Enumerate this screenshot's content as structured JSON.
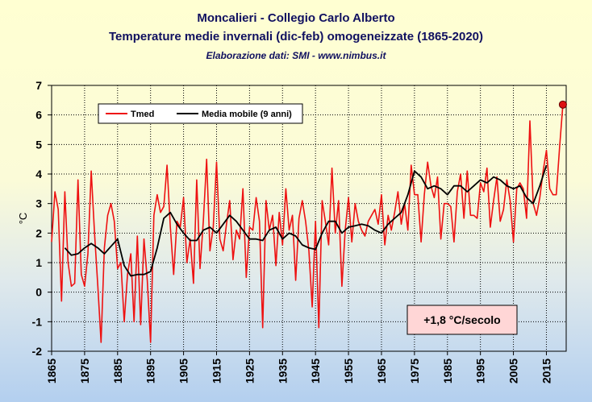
{
  "chart_data": {
    "type": "line",
    "title": "Moncalieri - Collegio Carlo Alberto",
    "subtitle": "Temperature medie invernali (dic-feb) omogeneizzate (1865-2020)",
    "source_note": "Elaborazione dati: SMI - www.nimbus.it",
    "xlabel": "",
    "ylabel": "°C",
    "ylim": [
      -2,
      7
    ],
    "xlim": [
      1865,
      2021
    ],
    "x_ticks": [
      "1865",
      "1875",
      "1885",
      "1895",
      "1905",
      "1915",
      "1925",
      "1935",
      "1945",
      "1955",
      "1965",
      "1975",
      "1985",
      "1995",
      "2005",
      "2015"
    ],
    "y_ticks": [
      "-2",
      "-1",
      "0",
      "1",
      "2",
      "3",
      "4",
      "5",
      "6",
      "7"
    ],
    "grid": true,
    "legend_placement": "top-left",
    "trend_label": "+1,8 °C/secolo",
    "highlight_last": {
      "x": 2020,
      "y": 6.35
    },
    "series": [
      {
        "name": "Tmed",
        "color": "#ee1111",
        "x": [
          1865,
          1866,
          1867,
          1868,
          1869,
          1870,
          1871,
          1872,
          1873,
          1874,
          1875,
          1876,
          1877,
          1878,
          1879,
          1880,
          1881,
          1882,
          1883,
          1884,
          1885,
          1886,
          1887,
          1888,
          1889,
          1890,
          1891,
          1892,
          1893,
          1894,
          1895,
          1896,
          1897,
          1898,
          1899,
          1900,
          1901,
          1902,
          1903,
          1904,
          1905,
          1906,
          1907,
          1908,
          1909,
          1910,
          1911,
          1912,
          1913,
          1914,
          1915,
          1916,
          1917,
          1918,
          1919,
          1920,
          1921,
          1922,
          1923,
          1924,
          1925,
          1926,
          1927,
          1928,
          1929,
          1930,
          1931,
          1932,
          1933,
          1934,
          1935,
          1936,
          1937,
          1938,
          1939,
          1940,
          1941,
          1942,
          1943,
          1944,
          1945,
          1946,
          1947,
          1948,
          1949,
          1950,
          1951,
          1952,
          1953,
          1954,
          1955,
          1956,
          1957,
          1958,
          1959,
          1960,
          1961,
          1962,
          1963,
          1964,
          1965,
          1966,
          1967,
          1968,
          1969,
          1970,
          1971,
          1972,
          1973,
          1974,
          1975,
          1976,
          1977,
          1978,
          1979,
          1980,
          1981,
          1982,
          1983,
          1984,
          1985,
          1986,
          1987,
          1988,
          1989,
          1990,
          1991,
          1992,
          1993,
          1994,
          1995,
          1996,
          1997,
          1998,
          1999,
          2000,
          2001,
          2002,
          2003,
          2004,
          2005,
          2006,
          2007,
          2008,
          2009,
          2010,
          2011,
          2012,
          2013,
          2014,
          2015,
          2016,
          2017,
          2018,
          2019,
          2020
        ],
        "values": [
          1.7,
          3.4,
          2.8,
          -0.3,
          3.4,
          1.0,
          0.2,
          0.3,
          3.8,
          0.6,
          0.2,
          1.3,
          4.1,
          2.0,
          0.2,
          -1.7,
          1.5,
          2.6,
          3.0,
          2.4,
          0.8,
          1.0,
          -1.0,
          0.6,
          1.3,
          -1.0,
          1.9,
          -1.1,
          1.8,
          0.4,
          -1.7,
          2.6,
          3.3,
          2.7,
          2.9,
          4.3,
          2.2,
          0.6,
          2.4,
          2.2,
          3.2,
          1.0,
          1.8,
          0.3,
          3.8,
          0.8,
          2.4,
          4.5,
          1.4,
          2.2,
          4.4,
          1.8,
          1.4,
          2.3,
          3.1,
          1.1,
          2.1,
          1.8,
          3.5,
          0.5,
          2.2,
          2.1,
          3.2,
          2.4,
          -1.2,
          3.1,
          2.1,
          2.6,
          0.9,
          2.7,
          1.6,
          3.5,
          2.1,
          2.6,
          0.4,
          2.5,
          3.1,
          2.4,
          1.4,
          -0.5,
          2.4,
          -1.2,
          3.1,
          2.4,
          1.6,
          4.2,
          2.0,
          3.1,
          0.2,
          2.1,
          3.2,
          1.7,
          3.0,
          2.4,
          2.1,
          1.9,
          2.4,
          2.6,
          2.8,
          2.3,
          3.3,
          1.6,
          2.6,
          2.1,
          2.7,
          3.4,
          2.3,
          3.0,
          2.1,
          4.3,
          3.3,
          3.3,
          1.7,
          3.3,
          4.4,
          3.6,
          3.2,
          3.9,
          1.8,
          3.0,
          3.0,
          2.9,
          1.7,
          3.4,
          4.0,
          2.5,
          4.1,
          2.6,
          2.6,
          2.5,
          3.7,
          3.4,
          4.2,
          2.2,
          3.1,
          3.9,
          2.4,
          2.8,
          3.8,
          3.1,
          1.7,
          3.5,
          3.7,
          3.5,
          2.5,
          5.8,
          3.0,
          2.6,
          3.2,
          4.1,
          4.8,
          3.5,
          3.3,
          3.3,
          4.9,
          6.35
        ]
      },
      {
        "name": "Media mobile (9 anni)",
        "color": "#000000",
        "x": [
          1869,
          1871,
          1873,
          1875,
          1877,
          1879,
          1881,
          1883,
          1885,
          1887,
          1889,
          1891,
          1893,
          1895,
          1897,
          1899,
          1901,
          1903,
          1905,
          1907,
          1909,
          1911,
          1913,
          1915,
          1917,
          1919,
          1921,
          1923,
          1925,
          1927,
          1929,
          1931,
          1933,
          1935,
          1937,
          1939,
          1941,
          1943,
          1945,
          1947,
          1949,
          1951,
          1953,
          1955,
          1957,
          1959,
          1961,
          1963,
          1965,
          1967,
          1969,
          1971,
          1973,
          1975,
          1977,
          1979,
          1981,
          1983,
          1985,
          1987,
          1989,
          1991,
          1993,
          1995,
          1997,
          1999,
          2001,
          2003,
          2005,
          2007,
          2009,
          2011,
          2013,
          2015
        ],
        "values": [
          1.5,
          1.25,
          1.3,
          1.5,
          1.65,
          1.5,
          1.3,
          1.55,
          1.8,
          0.9,
          0.55,
          0.6,
          0.6,
          0.7,
          1.5,
          2.5,
          2.7,
          2.3,
          2.0,
          1.75,
          1.75,
          2.1,
          2.2,
          2.0,
          2.3,
          2.6,
          2.4,
          2.1,
          1.8,
          1.8,
          1.75,
          2.1,
          2.2,
          1.8,
          2.0,
          1.9,
          1.6,
          1.5,
          1.45,
          2.0,
          2.4,
          2.4,
          2.0,
          2.2,
          2.25,
          2.3,
          2.25,
          2.1,
          2.0,
          2.3,
          2.5,
          2.7,
          3.3,
          4.1,
          3.9,
          3.5,
          3.6,
          3.5,
          3.3,
          3.6,
          3.6,
          3.4,
          3.6,
          3.8,
          3.7,
          3.9,
          3.8,
          3.6,
          3.5,
          3.6,
          3.2,
          3.0,
          3.6,
          4.3
        ]
      }
    ]
  }
}
